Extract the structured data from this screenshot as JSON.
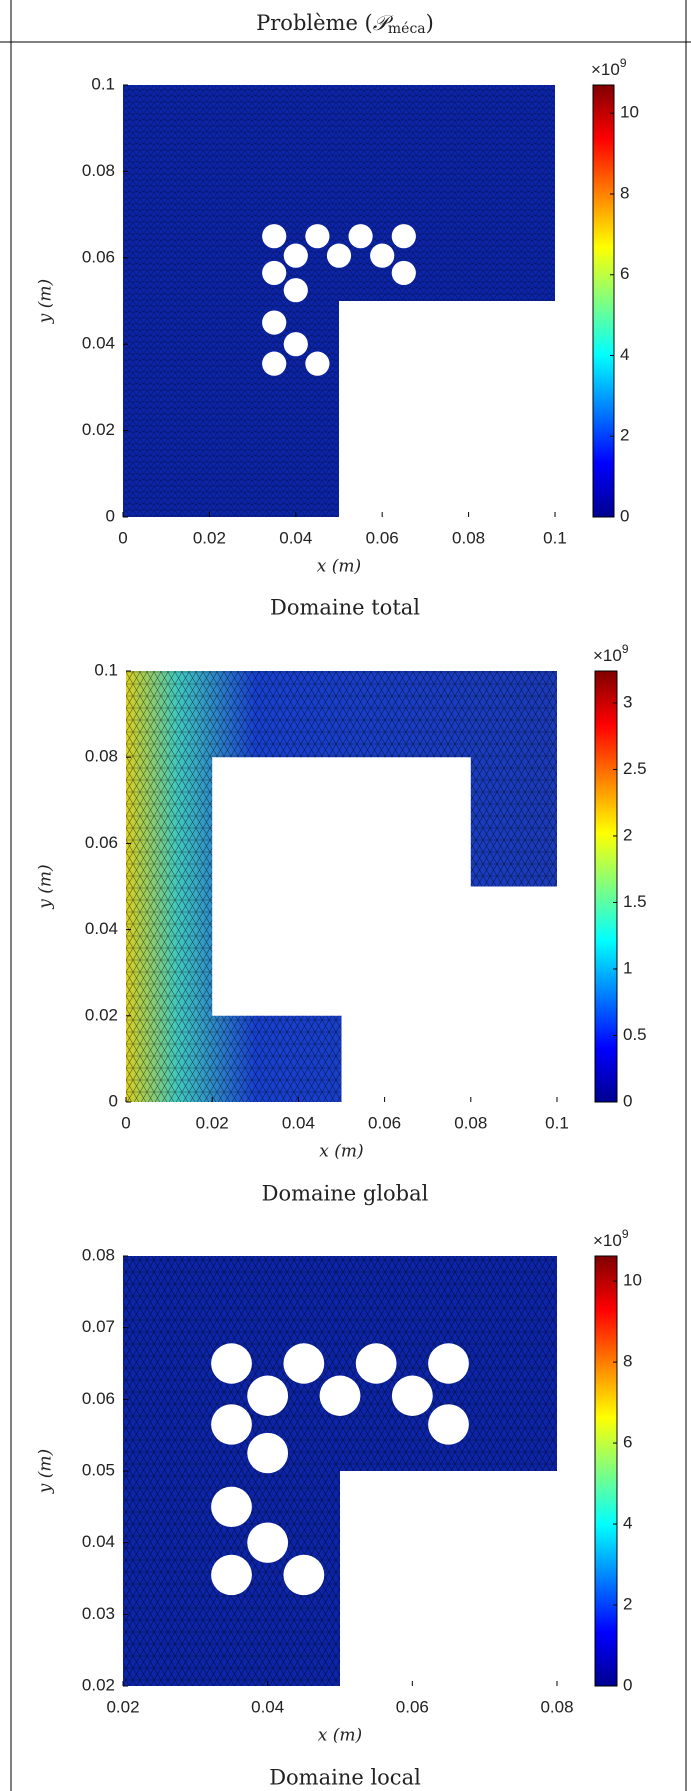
{
  "title": {
    "text": "Problème (",
    "symbol": "𝒫",
    "subscript": "méca",
    "suffix": ")"
  },
  "chart_data": [
    {
      "type": "mesh",
      "caption": "Domaine total",
      "x_label": "x (m)",
      "y_label": "y (m)",
      "xlim": [
        0,
        0.1
      ],
      "ylim": [
        0,
        0.1
      ],
      "xticks": [
        0,
        0.02,
        0.04,
        0.06,
        0.08,
        0.1
      ],
      "yticks": [
        0,
        0.02,
        0.04,
        0.06,
        0.08,
        0.1
      ],
      "colorbar": {
        "multiplier": "×10",
        "exponent": "9",
        "clim": [
          0,
          10.7
        ],
        "ticks": [
          0,
          2,
          4,
          6,
          8,
          10
        ]
      }
    },
    {
      "type": "mesh",
      "caption": "Domaine global",
      "x_label": "x (m)",
      "y_label": "y (m)",
      "xlim": [
        0,
        0.1
      ],
      "ylim": [
        0,
        0.1
      ],
      "xticks": [
        0,
        0.02,
        0.04,
        0.06,
        0.08,
        0.1
      ],
      "yticks": [
        0,
        0.02,
        0.04,
        0.06,
        0.08,
        0.1
      ],
      "colorbar": {
        "multiplier": "×10",
        "exponent": "9",
        "clim": [
          0,
          3.24
        ],
        "ticks": [
          0,
          0.5,
          1,
          1.5,
          2,
          2.5,
          3
        ]
      }
    },
    {
      "type": "mesh",
      "caption": "Domaine local",
      "x_label": "x (m)",
      "y_label": "y (m)",
      "xlim": [
        0.02,
        0.08
      ],
      "ylim": [
        0.02,
        0.08
      ],
      "xticks": [
        0.02,
        0.04,
        0.06,
        0.08
      ],
      "yticks": [
        0.02,
        0.03,
        0.04,
        0.05,
        0.06,
        0.07,
        0.08
      ],
      "colorbar": {
        "multiplier": "×10",
        "exponent": "9",
        "clim": [
          0,
          10.62
        ],
        "ticks": [
          0,
          2,
          4,
          6,
          8,
          10
        ]
      }
    }
  ]
}
